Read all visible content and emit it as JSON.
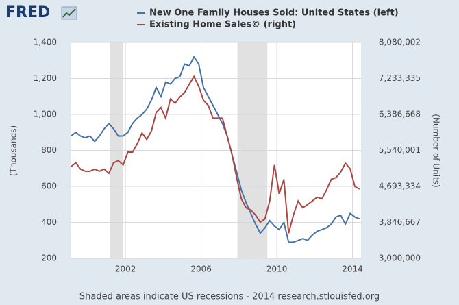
{
  "chart_data": {
    "type": "line",
    "logo": "FRED",
    "y_label": "(Thousands)",
    "y2_label": "(Number of Units)",
    "note": "Shaded areas indicate US recessions - 2014 research.stlouisfed.org",
    "x": [
      1999.125,
      1999.375,
      1999.625,
      1999.875,
      2000.125,
      2000.375,
      2000.625,
      2000.875,
      2001.125,
      2001.375,
      2001.625,
      2001.875,
      2002.125,
      2002.375,
      2002.625,
      2002.875,
      2003.125,
      2003.375,
      2003.625,
      2003.875,
      2004.125,
      2004.375,
      2004.625,
      2004.875,
      2005.125,
      2005.375,
      2005.625,
      2005.875,
      2006.125,
      2006.375,
      2006.625,
      2006.875,
      2007.125,
      2007.375,
      2007.625,
      2007.875,
      2008.125,
      2008.375,
      2008.625,
      2008.875,
      2009.125,
      2009.375,
      2009.625,
      2009.875,
      2010.125,
      2010.375,
      2010.625,
      2010.875,
      2011.125,
      2011.375,
      2011.625,
      2011.875,
      2012.125,
      2012.375,
      2012.625,
      2012.875,
      2013.125,
      2013.375,
      2013.625,
      2013.875,
      2014.125,
      2014.375
    ],
    "series": [
      {
        "name": "New One Family Houses Sold: United States (left)",
        "color": "#4572a7",
        "values": [
          880,
          900,
          880,
          870,
          880,
          850,
          880,
          920,
          950,
          920,
          880,
          880,
          900,
          950,
          980,
          1000,
          1030,
          1080,
          1150,
          1100,
          1180,
          1170,
          1200,
          1210,
          1280,
          1270,
          1320,
          1280,
          1150,
          1100,
          1050,
          1000,
          950,
          880,
          780,
          680,
          580,
          510,
          450,
          390,
          340,
          370,
          410,
          380,
          360,
          400,
          290,
          290,
          300,
          310,
          300,
          330,
          350,
          360,
          370,
          390,
          430,
          440,
          390,
          450,
          430,
          420
        ]
      },
      {
        "name": "Existing Home Sales© (right)",
        "color": "#aa4643",
        "axis": "y2",
        "values": [
          5160000,
          5250000,
          5100000,
          5050000,
          5050000,
          5100000,
          5050000,
          5100000,
          5000000,
          5250000,
          5300000,
          5200000,
          5500000,
          5500000,
          5700000,
          5950000,
          5800000,
          6000000,
          6430000,
          6550000,
          6300000,
          6750000,
          6650000,
          6800000,
          6900000,
          7100000,
          7280000,
          7050000,
          6720000,
          6600000,
          6300000,
          6300000,
          6300000,
          5880000,
          5460000,
          4900000,
          4400000,
          4190000,
          4140000,
          4020000,
          3850000,
          3930000,
          4350000,
          5200000,
          4520000,
          4860000,
          3590000,
          4020000,
          4350000,
          4190000,
          4270000,
          4350000,
          4440000,
          4400000,
          4610000,
          4860000,
          4900000,
          5030000,
          5240000,
          5110000,
          4690000,
          4630000
        ]
      }
    ],
    "recessions": [
      [
        2001.17,
        2001.88
      ],
      [
        2007.92,
        2009.5
      ]
    ],
    "xlim": [
      1999.1,
      2014.45
    ],
    "xticks": [
      2002,
      2006,
      2010,
      2014
    ],
    "ylim": [
      200,
      1400
    ],
    "yticks": [
      200,
      400,
      600,
      800,
      {
        "value": 1000,
        "label": "1,000"
      },
      {
        "value": 1200,
        "label": "1,200"
      },
      {
        "value": 1400,
        "label": "1,400"
      }
    ],
    "y2lim": [
      3000000,
      8080002
    ],
    "y2ticks": [
      {
        "value": 3000000,
        "label": "3,000,000"
      },
      {
        "value": 3846667,
        "label": "3,846,667"
      },
      {
        "value": 4693334,
        "label": "4,693,334"
      },
      {
        "value": 5540001,
        "label": "5,540,001"
      },
      {
        "value": 6386668,
        "label": "6,386,668"
      },
      {
        "value": 7233335,
        "label": "7,233,335"
      },
      {
        "value": 8080002,
        "label": "8,080,002"
      }
    ],
    "grid": true
  }
}
